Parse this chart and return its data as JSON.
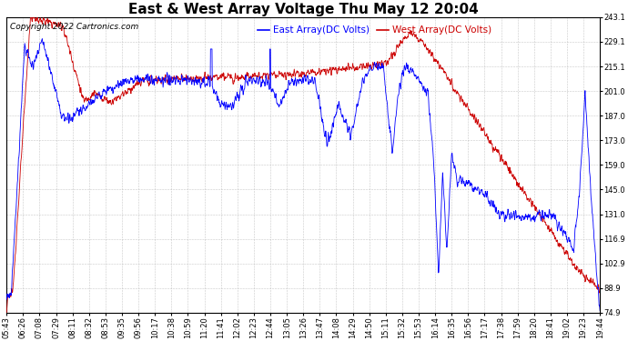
{
  "title": "East & West Array Voltage Thu May 12 20:04",
  "copyright": "Copyright 2022 Cartronics.com",
  "legend_east": "East Array(DC Volts)",
  "legend_west": "West Array(DC Volts)",
  "east_color": "#0000ff",
  "west_color": "#cc0000",
  "background_color": "#ffffff",
  "grid_color": "#bbbbbb",
  "yticks": [
    74.9,
    88.9,
    102.9,
    116.9,
    131.0,
    145.0,
    159.0,
    173.0,
    187.0,
    201.0,
    215.1,
    229.1,
    243.1
  ],
  "ylim": [
    74.9,
    243.1
  ],
  "title_fontsize": 11,
  "label_fontsize": 7.5,
  "tick_fontsize": 6,
  "copyright_fontsize": 6.5
}
